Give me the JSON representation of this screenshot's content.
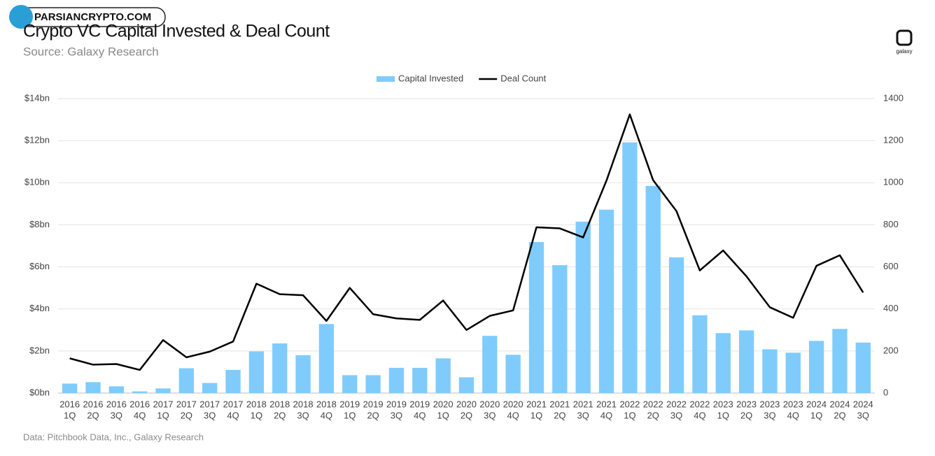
{
  "watermark": "PARSIANCRYPTO.COM",
  "logo": "galaxy",
  "footer": "Data: Pitchbook Data, Inc., Galaxy Research",
  "chart_data": {
    "type": "bar_line",
    "title": "Crypto VC Capital Invested & Deal Count",
    "subtitle": "Source: Galaxy Research",
    "categories": [
      [
        "2016",
        "1Q"
      ],
      [
        "2016",
        "2Q"
      ],
      [
        "2016",
        "3Q"
      ],
      [
        "2016",
        "4Q"
      ],
      [
        "2017",
        "1Q"
      ],
      [
        "2017",
        "2Q"
      ],
      [
        "2017",
        "3Q"
      ],
      [
        "2017",
        "4Q"
      ],
      [
        "2018",
        "1Q"
      ],
      [
        "2018",
        "2Q"
      ],
      [
        "2018",
        "3Q"
      ],
      [
        "2018",
        "4Q"
      ],
      [
        "2019",
        "1Q"
      ],
      [
        "2019",
        "2Q"
      ],
      [
        "2019",
        "3Q"
      ],
      [
        "2019",
        "4Q"
      ],
      [
        "2020",
        "1Q"
      ],
      [
        "2020",
        "2Q"
      ],
      [
        "2020",
        "3Q"
      ],
      [
        "2020",
        "4Q"
      ],
      [
        "2021",
        "1Q"
      ],
      [
        "2021",
        "2Q"
      ],
      [
        "2021",
        "3Q"
      ],
      [
        "2021",
        "4Q"
      ],
      [
        "2022",
        "1Q"
      ],
      [
        "2022",
        "2Q"
      ],
      [
        "2022",
        "3Q"
      ],
      [
        "2022",
        "4Q"
      ],
      [
        "2023",
        "1Q"
      ],
      [
        "2023",
        "2Q"
      ],
      [
        "2023",
        "3Q"
      ],
      [
        "2023",
        "4Q"
      ],
      [
        "2024",
        "1Q"
      ],
      [
        "2024",
        "2Q"
      ],
      [
        "2024",
        "3Q"
      ]
    ],
    "series": [
      {
        "name": "Capital Invested",
        "type": "bar",
        "color": "#7fccfc",
        "values": [
          0.45,
          0.52,
          0.32,
          0.08,
          0.22,
          1.18,
          0.48,
          1.1,
          1.98,
          2.36,
          1.8,
          3.28,
          0.85,
          0.85,
          1.2,
          1.2,
          1.65,
          0.75,
          2.72,
          1.82,
          7.18,
          6.08,
          8.15,
          8.72,
          11.92,
          9.85,
          6.45,
          3.7,
          2.85,
          2.98,
          2.08,
          1.92,
          2.48,
          3.05,
          2.4
        ]
      },
      {
        "name": "Deal Count",
        "type": "line",
        "color": "#000000",
        "axis": "y2",
        "values": [
          165,
          135,
          138,
          110,
          252,
          170,
          197,
          245,
          520,
          470,
          465,
          343,
          500,
          375,
          355,
          348,
          440,
          300,
          367,
          393,
          788,
          783,
          740,
          1010,
          1325,
          1012,
          865,
          583,
          678,
          555,
          408,
          358,
          605,
          655,
          478
        ]
      }
    ],
    "ylim": [
      0,
      14
    ],
    "yticks": [
      {
        "value": 0,
        "label": "$0bn"
      },
      {
        "value": 2,
        "label": "$2bn"
      },
      {
        "value": 4,
        "label": "$4bn"
      },
      {
        "value": 6,
        "label": "$6bn"
      },
      {
        "value": 8,
        "label": "$8bn"
      },
      {
        "value": 10,
        "label": "$10bn"
      },
      {
        "value": 12,
        "label": "$12bn"
      },
      {
        "value": 14,
        "label": "$14bn"
      }
    ],
    "y2lim": [
      0,
      1400
    ],
    "y2ticks": [
      0,
      200,
      400,
      600,
      800,
      1000,
      1200,
      1400
    ],
    "grid": true,
    "legend": "top"
  }
}
